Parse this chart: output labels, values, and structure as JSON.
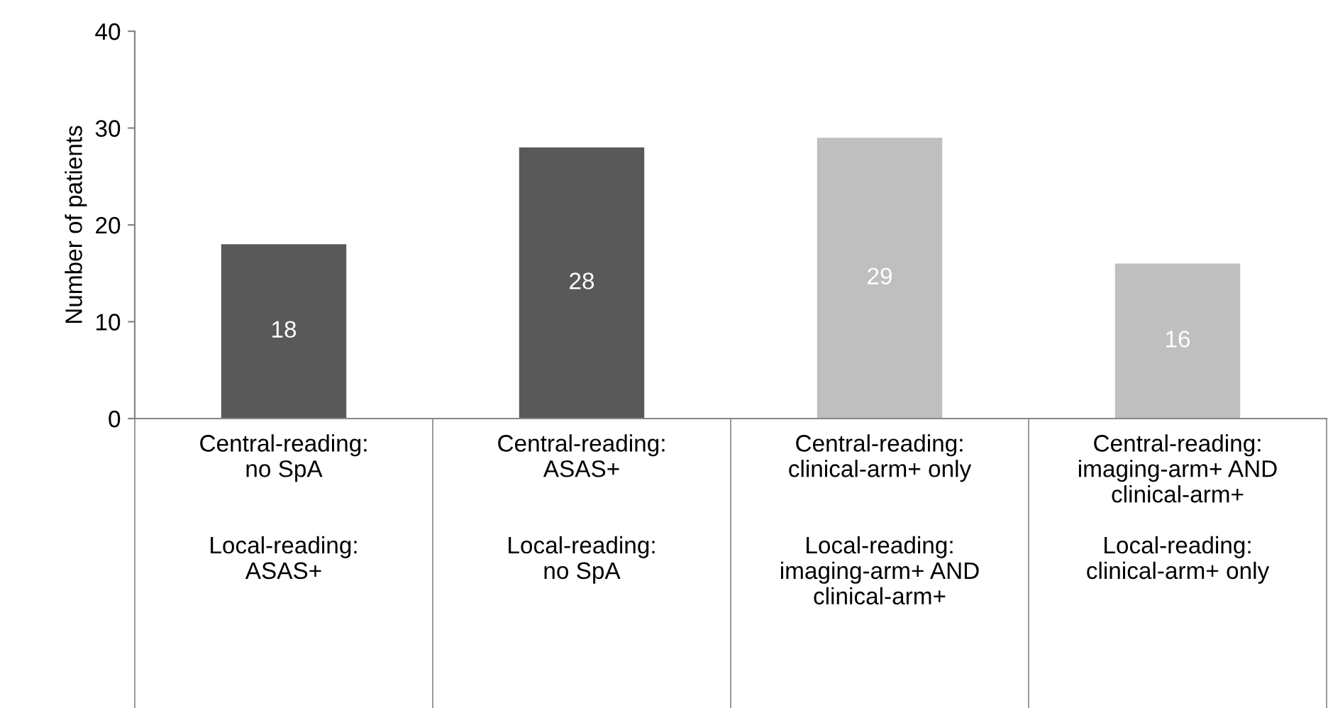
{
  "chart_data": {
    "type": "bar",
    "ylabel": "Number of patients",
    "categories": [
      "Central-reading:\nno SpA\n\n\nLocal-reading:\nASAS+",
      "Central-reading:\nASAS+\n\n\nLocal-reading:\nno SpA",
      "Central-reading:\nclinical-arm+ only\n\n\nLocal-reading:\nimaging-arm+ AND\nclinical-arm+",
      "Central-reading:\nimaging-arm+ AND\nclinical-arm+\n\nLocal-reading:\nclinical-arm+ only"
    ],
    "values": [
      18,
      28,
      29,
      16
    ],
    "colors": [
      "#595959",
      "#595959",
      "#bfbfbf",
      "#bfbfbf"
    ],
    "ylim": [
      0,
      40
    ],
    "yticks": [
      0,
      10,
      20,
      30,
      40
    ],
    "grid": false,
    "legend": false,
    "data_labels": true
  }
}
